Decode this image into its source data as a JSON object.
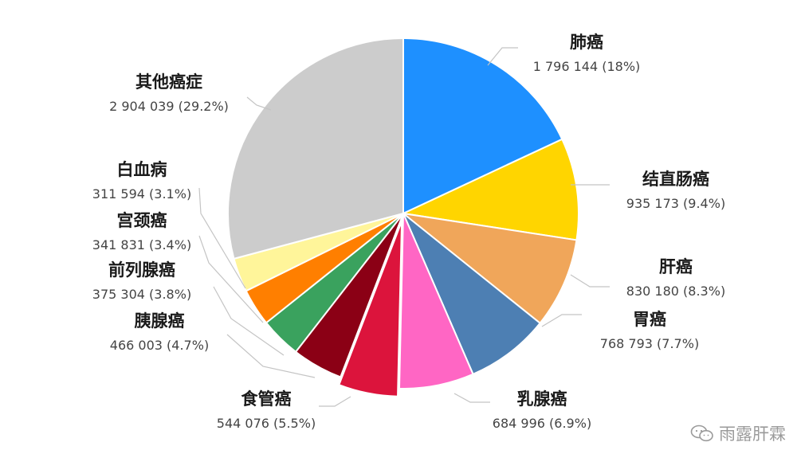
{
  "chart_data": {
    "type": "pie",
    "title": "",
    "unit": "",
    "slices": [
      {
        "label": "肺癌",
        "value": 1796144,
        "value_text": "1 796 144",
        "pct_text": "(18%)",
        "color": "#1e90ff"
      },
      {
        "label": "结直肠癌",
        "value": 935173,
        "value_text": "935 173",
        "pct_text": "(9.4%)",
        "color": "#ffd500"
      },
      {
        "label": "肝癌",
        "value": 830180,
        "value_text": "830 180",
        "pct_text": "(8.3%)",
        "color": "#f0a65a"
      },
      {
        "label": "胃癌",
        "value": 768793,
        "value_text": "768 793",
        "pct_text": "(7.7%)",
        "color": "#4d7fb3"
      },
      {
        "label": "乳腺癌",
        "value": 684996,
        "value_text": "684 996",
        "pct_text": "(6.9%)",
        "color": "#ff66c4"
      },
      {
        "label": "食管癌",
        "value": 544076,
        "value_text": "544 076",
        "pct_text": "(5.5%)",
        "color": "#dc143c"
      },
      {
        "label": "胰腺癌",
        "value": 466003,
        "value_text": "466 003",
        "pct_text": "(4.7%)",
        "color": "#8b0015"
      },
      {
        "label": "前列腺癌",
        "value": 375304,
        "value_text": "375 304",
        "pct_text": "(3.8%)",
        "color": "#3aa25e"
      },
      {
        "label": "宫颈癌",
        "value": 341831,
        "value_text": "341 831",
        "pct_text": "(3.4%)",
        "color": "#ff7f00"
      },
      {
        "label": "白血病",
        "value": 311594,
        "value_text": "311 594",
        "pct_text": "(3.1%)",
        "color": "#fff59a"
      },
      {
        "label": "其他癌症",
        "value": 2904039,
        "value_text": "2 904 039",
        "pct_text": "(29.2%)",
        "color": "#cccccc"
      }
    ],
    "exploded": [
      "食管癌"
    ]
  },
  "watermark": {
    "text": "雨露肝霖",
    "icon": "wechat-icon"
  }
}
